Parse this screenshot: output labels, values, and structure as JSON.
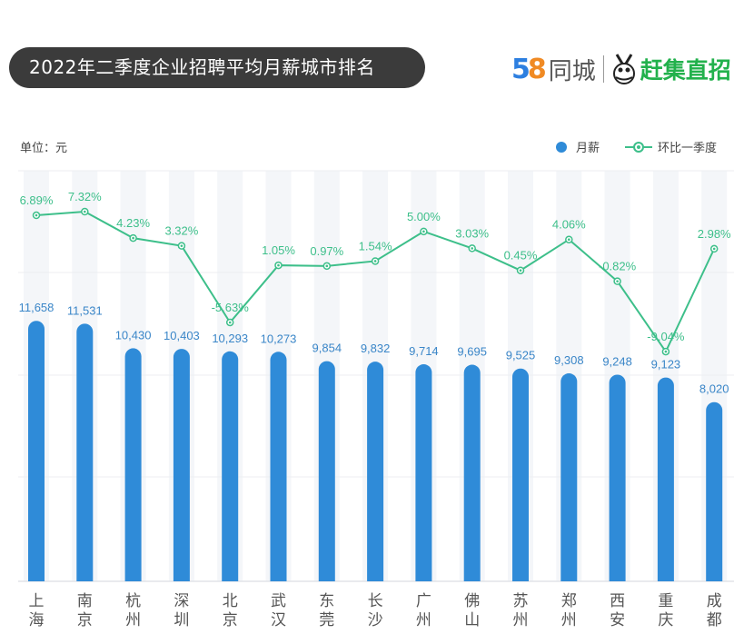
{
  "header": {
    "title": "2022年二季度企业招聘平均月薪城市排名",
    "logo_58": "58同城",
    "logo_ganji": "赶集直招"
  },
  "chart_data": {
    "type": "bar",
    "title": "2022年二季度企业招聘平均月薪城市排名",
    "unit_label": "单位：元",
    "legend_position": "top-right",
    "categories": [
      "上海",
      "南京",
      "杭州",
      "深圳",
      "北京",
      "武汉",
      "东莞",
      "长沙",
      "广州",
      "佛山",
      "苏州",
      "郑州",
      "西安",
      "重庆",
      "成都"
    ],
    "series": [
      {
        "name": "月薪",
        "type": "bar",
        "color": "#2f8bd8",
        "values": [
          11658,
          11531,
          10430,
          10403,
          10293,
          10273,
          9854,
          9832,
          9714,
          9695,
          9525,
          9308,
          9248,
          9123,
          8020
        ],
        "labels": [
          "11,658",
          "11,531",
          "10,430",
          "10,403",
          "10,293",
          "10,273",
          "9,854",
          "9,832",
          "9,714",
          "9,695",
          "9,525",
          "9,308",
          "9,248",
          "9,123",
          "8,020"
        ]
      },
      {
        "name": "环比一季度",
        "type": "line",
        "color": "#3dbf8a",
        "values": [
          6.89,
          7.32,
          4.23,
          3.32,
          -5.63,
          1.05,
          0.97,
          1.54,
          5.0,
          3.03,
          0.45,
          4.06,
          -0.82,
          -9.04,
          2.98
        ],
        "labels": [
          "6.89%",
          "7.32%",
          "4.23%",
          "3.32%",
          "-5.63%",
          "1.05%",
          "0.97%",
          "1.54%",
          "5.00%",
          "3.03%",
          "0.45%",
          "4.06%",
          "-0.82%",
          "-9.04%",
          "2.98%"
        ]
      }
    ],
    "grid": true
  }
}
